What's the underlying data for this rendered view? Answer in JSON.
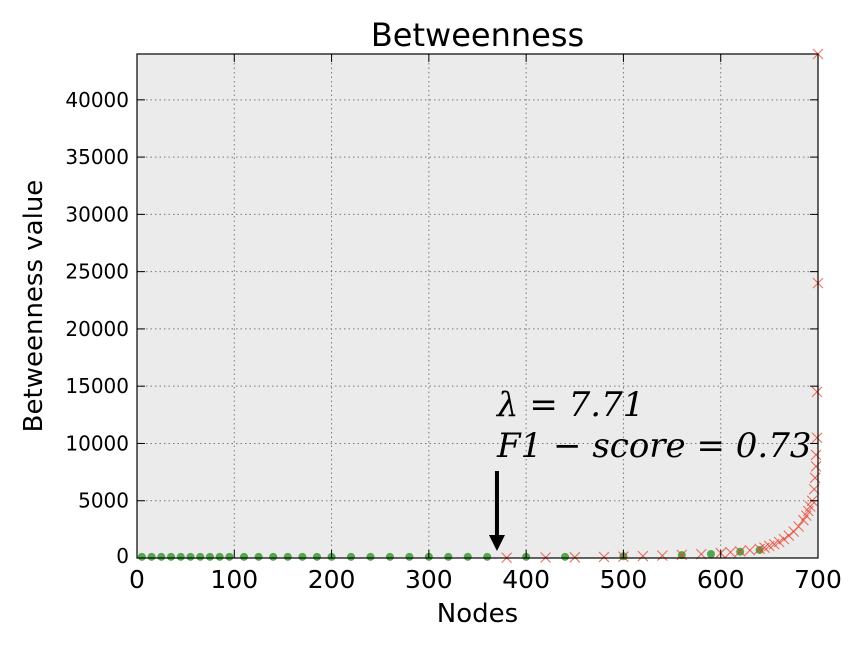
{
  "chart_data": {
    "type": "scatter",
    "title": "Betweenness",
    "xlabel": "Nodes",
    "ylabel": "Betweenness value",
    "xlim": [
      0,
      700
    ],
    "ylim": [
      0,
      44000
    ],
    "xticks": [
      0,
      100,
      200,
      300,
      400,
      500,
      600,
      700
    ],
    "yticks": [
      5000,
      10000,
      15000,
      20000,
      25000,
      30000,
      35000,
      40000
    ],
    "ytick_zero": "0",
    "grid": true,
    "colors": {
      "background": "#ebebeb",
      "red_marker": "#e8422c",
      "green_marker": "#3a9a35",
      "grid": "#7a7a7a"
    },
    "series": [
      {
        "marker": "x",
        "color": "#e8422c",
        "points": [
          [
            380,
            20
          ],
          [
            420,
            40
          ],
          [
            450,
            60
          ],
          [
            480,
            90
          ],
          [
            500,
            120
          ],
          [
            520,
            160
          ],
          [
            540,
            210
          ],
          [
            560,
            270
          ],
          [
            580,
            340
          ],
          [
            600,
            430
          ],
          [
            610,
            500
          ],
          [
            620,
            580
          ],
          [
            630,
            680
          ],
          [
            640,
            800
          ],
          [
            645,
            900
          ],
          [
            650,
            1050
          ],
          [
            655,
            1200
          ],
          [
            660,
            1400
          ],
          [
            665,
            1650
          ],
          [
            670,
            1950
          ],
          [
            675,
            2300
          ],
          [
            680,
            2750
          ],
          [
            685,
            3300
          ],
          [
            688,
            3700
          ],
          [
            690,
            4100
          ],
          [
            692,
            4500
          ],
          [
            694,
            5000
          ],
          [
            696,
            6000
          ],
          [
            697,
            7000
          ],
          [
            698,
            8000
          ],
          [
            698,
            9000
          ],
          [
            699,
            10500
          ],
          [
            699,
            14500
          ],
          [
            700,
            24000
          ],
          [
            700,
            44000
          ]
        ]
      },
      {
        "marker": "o",
        "color": "#3a9a35",
        "points": [
          [
            5,
            100
          ],
          [
            15,
            100
          ],
          [
            25,
            100
          ],
          [
            35,
            100
          ],
          [
            45,
            100
          ],
          [
            55,
            100
          ],
          [
            65,
            100
          ],
          [
            75,
            100
          ],
          [
            85,
            100
          ],
          [
            95,
            100
          ],
          [
            110,
            100
          ],
          [
            125,
            100
          ],
          [
            140,
            100
          ],
          [
            155,
            100
          ],
          [
            170,
            100
          ],
          [
            185,
            100
          ],
          [
            200,
            100
          ],
          [
            220,
            100
          ],
          [
            240,
            100
          ],
          [
            260,
            100
          ],
          [
            280,
            100
          ],
          [
            300,
            100
          ],
          [
            320,
            100
          ],
          [
            340,
            100
          ],
          [
            360,
            100
          ],
          [
            400,
            100
          ],
          [
            440,
            100
          ],
          [
            500,
            150
          ],
          [
            560,
            250
          ],
          [
            590,
            350
          ],
          [
            620,
            550
          ],
          [
            640,
            700
          ]
        ]
      }
    ],
    "annotations": {
      "line1": "λ = 7.71",
      "line2": "F1 − score = 0.73",
      "arrow_x": 370
    }
  }
}
